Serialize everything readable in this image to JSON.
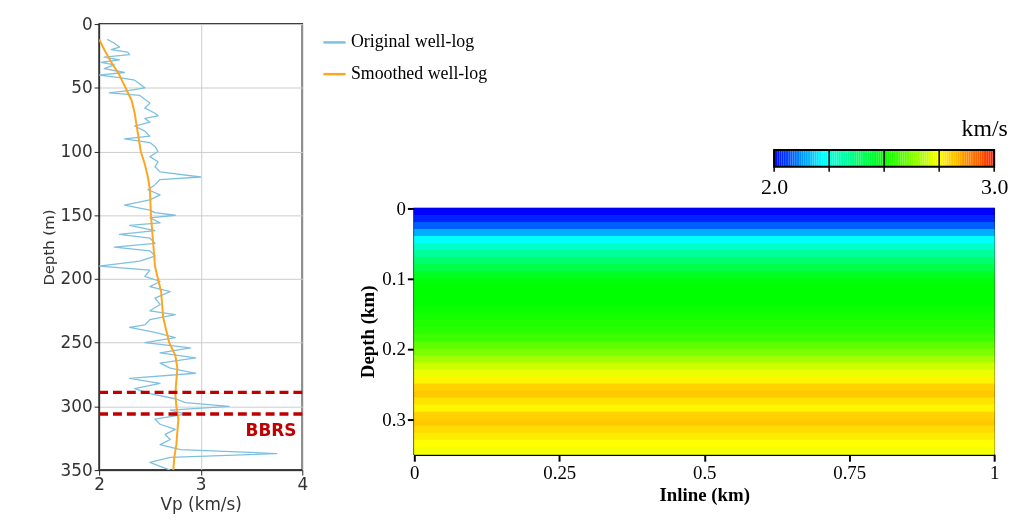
{
  "chart_data": [
    {
      "type": "line",
      "xlabel": "Vp (km/s)",
      "ylabel": "Depth (m)",
      "xlim": [
        2,
        4
      ],
      "xticks": [
        2,
        3,
        4
      ],
      "ylim": [
        350,
        0
      ],
      "yticks": [
        0,
        50,
        100,
        150,
        200,
        250,
        300,
        350
      ],
      "grid": true,
      "legend": "top right",
      "marker": "none",
      "line_style": "solid",
      "series": [
        {
          "name": "Original well-log",
          "color": "#7ec0e0",
          "x": [
            2.08,
            2.15,
            2.2,
            2.12,
            2.28,
            2.3,
            2.05,
            2.2,
            2.02,
            2.15,
            2.05,
            2.25,
            2.0,
            2.2,
            2.35,
            2.4,
            2.45,
            2.3,
            2.1,
            2.4,
            2.45,
            2.5,
            2.45,
            2.55,
            2.58,
            2.45,
            2.5,
            2.35,
            2.45,
            2.5,
            2.25,
            2.5,
            2.55,
            2.58,
            2.5,
            2.58,
            2.55,
            2.6,
            3.0,
            2.6,
            2.55,
            2.48,
            2.6,
            2.5,
            2.25,
            2.5,
            2.55,
            2.75,
            2.5,
            2.6,
            2.3,
            2.55,
            2.2,
            2.5,
            2.55,
            2.15,
            2.5,
            2.55,
            2.4,
            2.0,
            2.5,
            2.45,
            2.6,
            2.5,
            2.7,
            2.55,
            2.6,
            2.5,
            2.75,
            2.5,
            2.45,
            2.3,
            2.55,
            2.75,
            2.45,
            2.9,
            2.6,
            2.95,
            2.6,
            2.7,
            2.95,
            2.3,
            2.6,
            2.35,
            2.5,
            2.75,
            2.85,
            3.28,
            2.7,
            2.85,
            2.55,
            2.6,
            2.75,
            2.65,
            2.7,
            2.6,
            2.8,
            3.75,
            2.7,
            2.5,
            2.6,
            2.7
          ],
          "values": [
            12,
            15,
            18,
            20,
            22,
            24,
            26,
            28,
            30,
            32,
            35,
            38,
            40,
            42,
            44,
            47,
            50,
            52,
            54,
            56,
            59,
            62,
            66,
            70,
            72,
            74,
            77,
            80,
            84,
            88,
            90,
            93,
            96,
            100,
            104,
            108,
            112,
            116,
            120,
            122,
            126,
            130,
            134,
            138,
            142,
            146,
            148,
            150,
            152,
            156,
            158,
            162,
            165,
            168,
            172,
            175,
            178,
            182,
            186,
            190,
            193,
            198,
            202,
            206,
            210,
            215,
            220,
            225,
            228,
            232,
            236,
            238,
            242,
            246,
            250,
            254,
            258,
            262,
            266,
            270,
            274,
            278,
            282,
            286,
            290,
            294,
            297,
            300,
            303,
            306,
            310,
            314,
            318,
            322,
            326,
            330,
            334,
            337,
            340,
            344,
            347,
            350
          ]
        },
        {
          "name": "Smoothed well-log",
          "color": "#ffa520",
          "x": [
            2.0,
            2.05,
            2.12,
            2.2,
            2.26,
            2.32,
            2.35,
            2.37,
            2.39,
            2.41,
            2.45,
            2.48,
            2.5,
            2.51,
            2.53,
            2.55,
            2.58,
            2.61,
            2.63,
            2.69,
            2.75,
            2.77,
            2.76,
            2.75,
            2.76,
            2.78,
            2.76,
            2.74,
            2.73
          ],
          "values": [
            12,
            20,
            30,
            40,
            50,
            60,
            70,
            80,
            90,
            100,
            110,
            120,
            130,
            150,
            170,
            190,
            200,
            210,
            230,
            250,
            260,
            270,
            280,
            290,
            300,
            310,
            330,
            340,
            350
          ]
        }
      ],
      "ref_lines": [
        {
          "axis": "y",
          "value": 289,
          "color": "#c00000",
          "line_style": "dashed"
        },
        {
          "axis": "y",
          "value": 306,
          "color": "#c00000",
          "line_style": "dashed",
          "label": "BBRS"
        }
      ]
    },
    {
      "type": "heatmap",
      "xlabel": "Inline (km)",
      "ylabel": "Depth (km)",
      "xlim": [
        0,
        1
      ],
      "xticks": [
        0,
        0.25,
        0.5,
        0.75,
        1
      ],
      "ylim": [
        0.35,
        0
      ],
      "yticks": [
        0,
        0.1,
        0.2,
        0.3
      ],
      "clabel": "km/s",
      "clim": [
        2,
        3
      ],
      "cticks": [
        {
          "value": 2,
          "label": "2.0"
        },
        {
          "value": 2.25,
          "label": null
        },
        {
          "value": 2.5,
          "label": null
        },
        {
          "value": 2.75,
          "label": null
        },
        {
          "value": 3,
          "label": "3.0"
        }
      ],
      "cells": [
        [
          2.0
        ],
        [
          2.03
        ],
        [
          2.08
        ],
        [
          2.15
        ],
        [
          2.22
        ],
        [
          2.28
        ],
        [
          2.33
        ],
        [
          2.38
        ],
        [
          2.42
        ],
        [
          2.46
        ],
        [
          2.49
        ],
        [
          2.5
        ],
        [
          2.5
        ],
        [
          2.5
        ],
        [
          2.51
        ],
        [
          2.52
        ],
        [
          2.53
        ],
        [
          2.54
        ],
        [
          2.56
        ],
        [
          2.59
        ],
        [
          2.62
        ],
        [
          2.66
        ],
        [
          2.7
        ],
        [
          2.73
        ],
        [
          2.76
        ],
        [
          2.8
        ],
        [
          2.81
        ],
        [
          2.78
        ],
        [
          2.76
        ],
        [
          2.8
        ],
        [
          2.81
        ],
        [
          2.79
        ],
        [
          2.77
        ],
        [
          2.75
        ],
        [
          2.74
        ]
      ]
    }
  ]
}
